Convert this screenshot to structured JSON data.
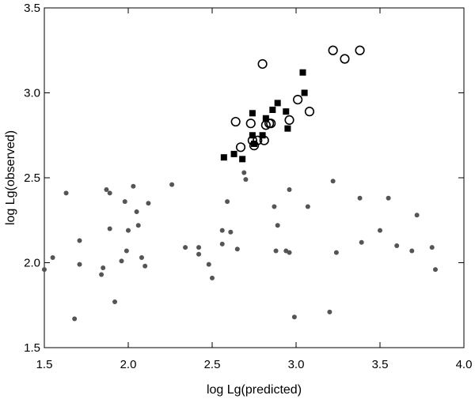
{
  "chart_data": {
    "type": "scatter",
    "xlabel": "log Lg(predicted)",
    "ylabel": "log Lg(observed)",
    "xlim": [
      1.5,
      4.0
    ],
    "ylim": [
      1.5,
      3.5
    ],
    "x_ticks": [
      1.5,
      2.0,
      2.5,
      3.0,
      3.5,
      4.0
    ],
    "x_tick_labels": [
      "1.5",
      "2.0",
      "2.5",
      "3.0",
      "3.5",
      "4.0"
    ],
    "y_ticks": [
      1.5,
      2.0,
      2.5,
      3.0,
      3.5
    ],
    "y_tick_labels": [
      "1.5",
      "2.0",
      "2.5",
      "3.0",
      "3.5"
    ],
    "grid": false,
    "series": [
      {
        "marker": "small-filled-circle",
        "color": "#555555",
        "x": [
          1.5,
          1.55,
          1.63,
          1.68,
          1.71,
          1.71,
          1.84,
          1.85,
          1.87,
          1.89,
          1.89,
          1.92,
          1.96,
          1.98,
          1.99,
          2.0,
          2.03,
          2.05,
          2.06,
          2.08,
          2.1,
          2.12,
          2.26,
          2.34,
          2.42,
          2.42,
          2.48,
          2.5,
          2.56,
          2.56,
          2.59,
          2.61,
          2.65,
          2.69,
          2.7,
          2.87,
          2.88,
          2.89,
          2.94,
          2.96,
          2.96,
          2.99,
          3.07,
          3.2,
          3.22,
          3.24,
          3.38,
          3.39,
          3.5,
          3.55,
          3.6,
          3.69,
          3.72,
          3.81,
          3.83
        ],
        "y": [
          1.96,
          2.03,
          2.41,
          1.67,
          2.13,
          1.99,
          1.93,
          1.97,
          2.43,
          2.2,
          2.41,
          1.77,
          2.01,
          2.36,
          2.07,
          2.19,
          2.45,
          2.3,
          2.22,
          2.03,
          1.98,
          2.35,
          2.46,
          2.09,
          2.09,
          2.05,
          1.99,
          1.91,
          2.19,
          2.11,
          2.36,
          2.18,
          2.08,
          2.53,
          2.49,
          2.33,
          2.07,
          2.22,
          2.07,
          2.43,
          2.06,
          1.68,
          2.33,
          1.71,
          2.48,
          2.06,
          2.38,
          2.12,
          2.19,
          2.38,
          2.1,
          2.07,
          2.28,
          2.09,
          1.96
        ]
      },
      {
        "marker": "filled-square",
        "color": "#000000",
        "x": [
          2.57,
          2.63,
          2.68,
          2.74,
          2.74,
          2.75,
          2.8,
          2.82,
          2.86,
          2.89,
          2.94,
          2.95,
          3.04,
          3.05
        ],
        "y": [
          2.62,
          2.64,
          2.61,
          2.75,
          2.88,
          2.7,
          2.75,
          2.85,
          2.9,
          2.94,
          2.89,
          2.79,
          3.12,
          3.0
        ]
      },
      {
        "marker": "open-circle",
        "color": "#000000",
        "x": [
          2.64,
          2.67,
          2.73,
          2.74,
          2.75,
          2.77,
          2.8,
          2.81,
          2.82,
          2.84,
          2.85,
          2.96,
          3.01,
          3.08,
          3.22,
          3.29,
          3.38
        ],
        "y": [
          2.83,
          2.68,
          2.82,
          2.72,
          2.69,
          2.72,
          3.17,
          2.72,
          2.81,
          2.82,
          2.82,
          2.84,
          2.96,
          2.89,
          3.25,
          3.2,
          3.25
        ]
      }
    ]
  }
}
